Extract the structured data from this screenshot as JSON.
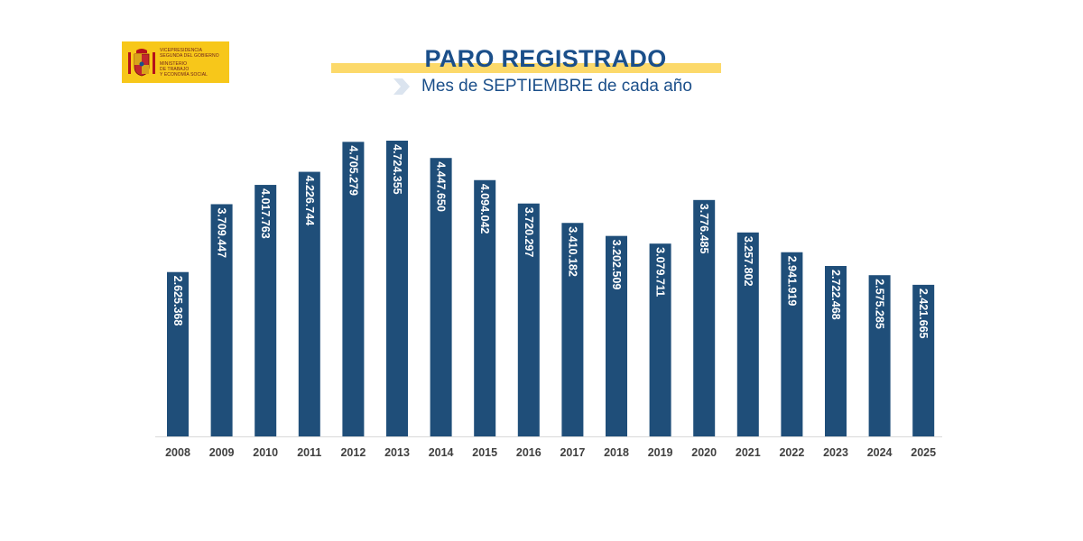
{
  "header": {
    "logo_lines": [
      "VICEPRESIDENCIA",
      "SEGUNDA DEL GOBIERNO",
      "MINISTERIO",
      "DE TRABAJO",
      "Y ECONOMÍA SOCIAL"
    ],
    "title": "PARO REGISTRADO",
    "subtitle": "Mes de SEPTIEMBRE de cada año"
  },
  "colors": {
    "bar": "#1f4e79",
    "title": "#1b4f8a",
    "title_band": "#fcd96a",
    "logo_bg": "#f7c71a"
  },
  "chart_data": {
    "type": "bar",
    "categories": [
      "2008",
      "2009",
      "2010",
      "2011",
      "2012",
      "2013",
      "2014",
      "2015",
      "2016",
      "2017",
      "2018",
      "2019",
      "2020",
      "2021",
      "2022",
      "2023",
      "2024",
      "2025"
    ],
    "values": [
      2625368,
      3709447,
      4017763,
      4226744,
      4705279,
      4724355,
      4447650,
      4094042,
      3720297,
      3410182,
      3202509,
      3079711,
      3776485,
      3257802,
      2941919,
      2722468,
      2575285,
      2421665
    ],
    "data_labels": [
      "2.625.368",
      "3.709.447",
      "4.017.763",
      "4.226.744",
      "4.705.279",
      "4.724.355",
      "4.447.650",
      "4.094.042",
      "3.720.297",
      "3.410.182",
      "3.202.509",
      "3.079.711",
      "3.776.485",
      "3.257.802",
      "2.941.919",
      "2.722.468",
      "2.575.285",
      "2.421.665"
    ],
    "title": "PARO REGISTRADO",
    "subtitle": "Mes de SEPTIEMBRE de cada año",
    "xlabel": "",
    "ylabel": "",
    "ylim": [
      0,
      4724355
    ],
    "grid": false,
    "legend": "none"
  }
}
